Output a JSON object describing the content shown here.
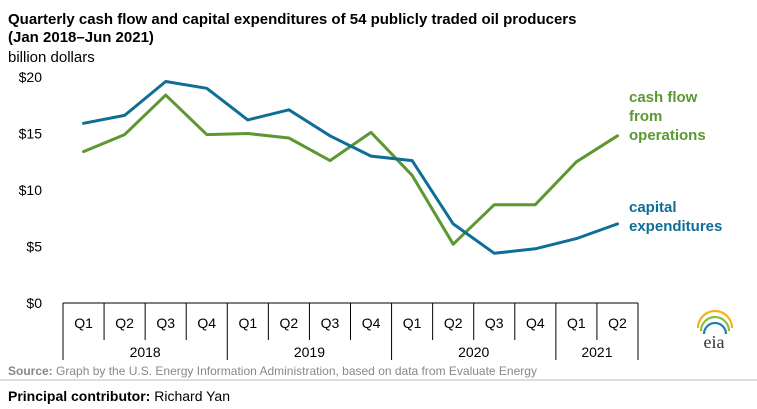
{
  "chart_data": {
    "type": "line",
    "title": "Quarterly cash flow and capital expenditures of 54 publicly traded oil producers",
    "title_line2": "(Jan 2018–Jun 2021)",
    "ylabel": "billion dollars",
    "ylim": [
      0,
      20
    ],
    "yticks": [
      0,
      5,
      10,
      15,
      20
    ],
    "ytick_labels": [
      "$0",
      "$5",
      "$10",
      "$15",
      "$20"
    ],
    "categories": [
      "Q1",
      "Q2",
      "Q3",
      "Q4",
      "Q1",
      "Q2",
      "Q3",
      "Q4",
      "Q1",
      "Q2",
      "Q3",
      "Q4",
      "Q1",
      "Q2"
    ],
    "years": [
      {
        "label": "2018",
        "start": 0,
        "end": 3
      },
      {
        "label": "2019",
        "start": 4,
        "end": 7
      },
      {
        "label": "2020",
        "start": 8,
        "end": 11
      },
      {
        "label": "2021",
        "start": 12,
        "end": 13
      }
    ],
    "series": [
      {
        "name": "cash flow from operations",
        "label_lines": [
          "cash flow",
          "from",
          "operations"
        ],
        "color": "#5d9732",
        "values": [
          13.4,
          14.9,
          18.4,
          14.9,
          15.0,
          14.6,
          12.6,
          15.1,
          11.3,
          5.2,
          8.7,
          8.7,
          12.5,
          14.8
        ]
      },
      {
        "name": "capital expenditures",
        "label_lines": [
          "capital",
          "expenditures"
        ],
        "color": "#0f6e96",
        "values": [
          15.9,
          16.6,
          19.6,
          19.0,
          16.2,
          17.1,
          14.8,
          13.0,
          12.6,
          7.0,
          4.4,
          4.8,
          5.7,
          7.0
        ]
      }
    ],
    "source_label": "Source:",
    "source_text": " Graph by the U.S. Energy Information Administration, based on data from Evaluate Energy",
    "contributor_label": "Principal contributor:",
    "contributor_name": " Richard Yan",
    "logo_text": "eia"
  }
}
